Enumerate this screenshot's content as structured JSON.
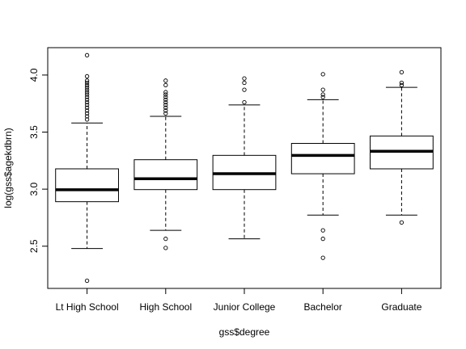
{
  "chart_data": {
    "type": "boxplot",
    "title": "",
    "xlabel": "gss$degree",
    "ylabel": "log(gss$agekdbrn)",
    "ylim": [
      2.13,
      4.24
    ],
    "yticks": [
      2.5,
      3.0,
      3.5,
      4.0
    ],
    "ytick_labels": [
      "2.5",
      "3.0",
      "3.5",
      "4.0"
    ],
    "grid": false,
    "legend": "none",
    "categories": [
      "Lt High School",
      "High School",
      "Junior College",
      "Bachelor",
      "Graduate"
    ],
    "boxes": [
      {
        "whisker_low": 2.48,
        "q1": 2.89,
        "median": 2.995,
        "q3": 3.178,
        "whisker_high": 3.58,
        "outliers": [
          2.197,
          3.611,
          3.638,
          3.664,
          3.689,
          3.714,
          3.738,
          3.761,
          3.784,
          3.807,
          3.829,
          3.85,
          3.871,
          3.892,
          3.912,
          3.932,
          3.951,
          3.989,
          4.174
        ]
      },
      {
        "whisker_low": 2.639,
        "q1": 2.996,
        "median": 3.091,
        "q3": 3.258,
        "whisker_high": 3.638,
        "outliers": [
          2.485,
          2.565,
          3.664,
          3.689,
          3.714,
          3.738,
          3.761,
          3.784,
          3.807,
          3.829,
          3.85,
          3.912,
          3.951
        ]
      },
      {
        "whisker_low": 2.565,
        "q1": 2.996,
        "median": 3.135,
        "q3": 3.296,
        "whisker_high": 3.738,
        "outliers": [
          3.761,
          3.871,
          3.932,
          3.97
        ]
      },
      {
        "whisker_low": 2.773,
        "q1": 3.135,
        "median": 3.296,
        "q3": 3.401,
        "whisker_high": 3.784,
        "outliers": [
          2.398,
          2.565,
          2.639,
          3.807,
          3.829,
          3.871,
          4.007
        ]
      },
      {
        "whisker_low": 2.773,
        "q1": 3.178,
        "median": 3.332,
        "q3": 3.466,
        "whisker_high": 3.892,
        "outliers": [
          2.708,
          3.912,
          3.932,
          4.025
        ]
      }
    ],
    "colors": {
      "line": "#000000",
      "box_fill": "#ffffff",
      "background": "#ffffff"
    }
  }
}
